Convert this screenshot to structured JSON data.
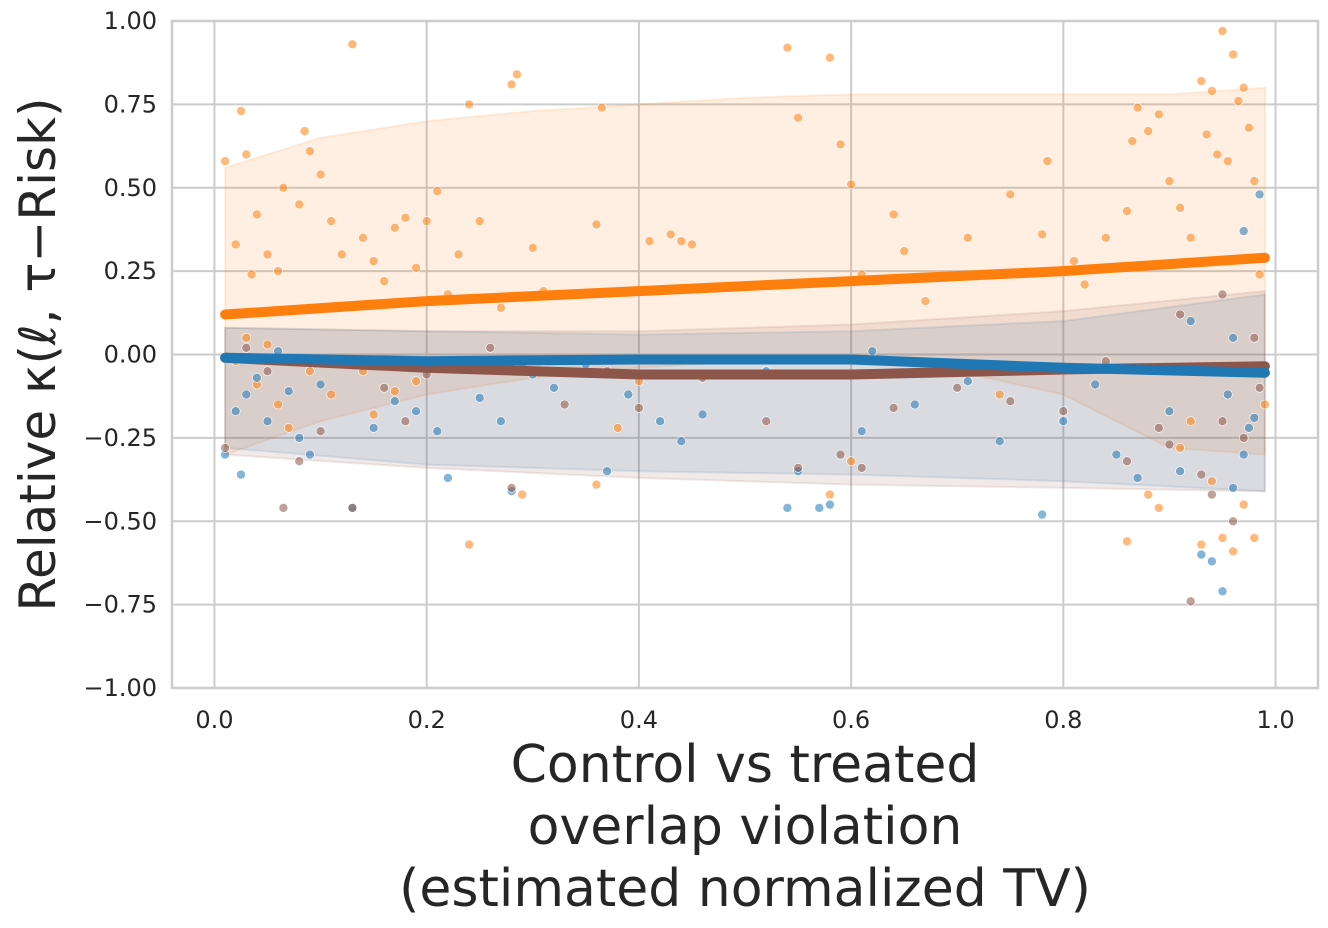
{
  "chart_data": {
    "type": "scatter",
    "xlabel_lines": [
      "Control vs treated",
      "overlap violation",
      "(estimated normalized TV)"
    ],
    "ylabel": "Relative κ(ℓ, τ−Risk)",
    "xlim": [
      -0.04,
      1.04
    ],
    "ylim": [
      -1.0,
      1.0
    ],
    "xticks": [
      0.0,
      0.2,
      0.4,
      0.6,
      0.8,
      1.0
    ],
    "xtick_labels": [
      "0.0",
      "0.2",
      "0.4",
      "0.6",
      "0.8",
      "1.0"
    ],
    "yticks": [
      -1.0,
      -0.75,
      -0.5,
      -0.25,
      0.0,
      0.25,
      0.5,
      0.75,
      1.0
    ],
    "ytick_labels": [
      "−1.00",
      "−0.75",
      "−0.50",
      "−0.25",
      "0.00",
      "0.25",
      "0.50",
      "0.75",
      "1.00"
    ],
    "grid": true,
    "legend": "none",
    "series": [
      {
        "color": "#ff7f0e",
        "trend": {
          "x": [
            0.01,
            0.2,
            0.4,
            0.6,
            0.8,
            0.99
          ],
          "y": [
            0.12,
            0.16,
            0.19,
            0.22,
            0.25,
            0.29
          ]
        },
        "band_upper": {
          "x": [
            0.01,
            0.1,
            0.2,
            0.3,
            0.4,
            0.5,
            0.6,
            0.7,
            0.8,
            0.9,
            0.99
          ],
          "y": [
            0.56,
            0.65,
            0.7,
            0.73,
            0.75,
            0.77,
            0.78,
            0.78,
            0.78,
            0.78,
            0.8
          ]
        },
        "band_lower": {
          "x": [
            0.01,
            0.1,
            0.2,
            0.3,
            0.4,
            0.5,
            0.6,
            0.7,
            0.8,
            0.9,
            0.99
          ],
          "y": [
            -0.3,
            -0.2,
            -0.12,
            -0.07,
            -0.04,
            -0.02,
            -0.02,
            -0.05,
            -0.12,
            -0.28,
            -0.3
          ]
        },
        "points": [
          [
            0.01,
            0.58
          ],
          [
            0.02,
            0.33
          ],
          [
            0.025,
            0.73
          ],
          [
            0.03,
            0.6
          ],
          [
            0.035,
            0.24
          ],
          [
            0.04,
            0.42
          ],
          [
            0.05,
            0.3
          ],
          [
            0.06,
            0.25
          ],
          [
            0.065,
            0.5
          ],
          [
            0.08,
            0.45
          ],
          [
            0.085,
            0.67
          ],
          [
            0.09,
            0.61
          ],
          [
            0.1,
            0.54
          ],
          [
            0.11,
            0.4
          ],
          [
            0.12,
            0.3
          ],
          [
            0.13,
            0.93
          ],
          [
            0.14,
            0.35
          ],
          [
            0.15,
            0.28
          ],
          [
            0.16,
            0.22
          ],
          [
            0.17,
            0.38
          ],
          [
            0.18,
            0.41
          ],
          [
            0.19,
            0.26
          ],
          [
            0.2,
            0.4
          ],
          [
            0.21,
            0.49
          ],
          [
            0.22,
            0.18
          ],
          [
            0.23,
            0.3
          ],
          [
            0.24,
            0.75
          ],
          [
            0.25,
            0.4
          ],
          [
            0.27,
            0.14
          ],
          [
            0.28,
            0.81
          ],
          [
            0.285,
            0.84
          ],
          [
            0.3,
            0.32
          ],
          [
            0.31,
            0.19
          ],
          [
            0.36,
            0.39
          ],
          [
            0.365,
            0.74
          ],
          [
            0.41,
            0.34
          ],
          [
            0.43,
            0.36
          ],
          [
            0.44,
            0.34
          ],
          [
            0.45,
            0.33
          ],
          [
            0.54,
            0.92
          ],
          [
            0.55,
            0.71
          ],
          [
            0.58,
            0.89
          ],
          [
            0.59,
            0.63
          ],
          [
            0.6,
            0.51
          ],
          [
            0.61,
            0.24
          ],
          [
            0.64,
            0.42
          ],
          [
            0.65,
            0.31
          ],
          [
            0.67,
            0.16
          ],
          [
            0.71,
            0.35
          ],
          [
            0.75,
            0.48
          ],
          [
            0.78,
            0.36
          ],
          [
            0.785,
            0.58
          ],
          [
            0.81,
            0.28
          ],
          [
            0.82,
            0.21
          ],
          [
            0.84,
            0.35
          ],
          [
            0.86,
            0.43
          ],
          [
            0.865,
            0.64
          ],
          [
            0.87,
            0.74
          ],
          [
            0.88,
            0.67
          ],
          [
            0.89,
            0.72
          ],
          [
            0.9,
            0.52
          ],
          [
            0.91,
            0.44
          ],
          [
            0.92,
            0.35
          ],
          [
            0.93,
            0.82
          ],
          [
            0.935,
            0.66
          ],
          [
            0.94,
            0.79
          ],
          [
            0.945,
            0.6
          ],
          [
            0.95,
            0.97
          ],
          [
            0.955,
            0.58
          ],
          [
            0.96,
            0.9
          ],
          [
            0.965,
            0.76
          ],
          [
            0.97,
            0.8
          ],
          [
            0.975,
            0.68
          ],
          [
            0.98,
            0.52
          ],
          [
            0.985,
            0.24
          ],
          [
            0.02,
            -0.02
          ],
          [
            0.03,
            0.05
          ],
          [
            0.04,
            -0.09
          ],
          [
            0.05,
            0.03
          ],
          [
            0.06,
            -0.15
          ],
          [
            0.07,
            -0.22
          ],
          [
            0.09,
            -0.05
          ],
          [
            0.11,
            -0.12
          ],
          [
            0.14,
            -0.05
          ],
          [
            0.15,
            -0.18
          ],
          [
            0.17,
            -0.11
          ],
          [
            0.19,
            -0.08
          ],
          [
            0.24,
            -0.57
          ],
          [
            0.29,
            -0.42
          ],
          [
            0.31,
            -0.02
          ],
          [
            0.36,
            -0.39
          ],
          [
            0.38,
            -0.22
          ],
          [
            0.4,
            -0.08
          ],
          [
            0.58,
            -0.42
          ],
          [
            0.6,
            -0.32
          ],
          [
            0.74,
            -0.12
          ],
          [
            0.86,
            -0.56
          ],
          [
            0.88,
            -0.42
          ],
          [
            0.89,
            -0.46
          ],
          [
            0.91,
            -0.28
          ],
          [
            0.93,
            -0.57
          ],
          [
            0.95,
            -0.55
          ],
          [
            0.96,
            -0.59
          ],
          [
            0.97,
            -0.45
          ],
          [
            0.98,
            -0.55
          ],
          [
            0.99,
            -0.15
          ],
          [
            0.92,
            -0.2
          ],
          [
            0.94,
            -0.38
          ]
        ]
      },
      {
        "color": "#1f77b4",
        "trend": {
          "x": [
            0.01,
            0.2,
            0.4,
            0.6,
            0.8,
            0.99
          ],
          "y": [
            -0.01,
            -0.02,
            -0.015,
            -0.015,
            -0.04,
            -0.055
          ]
        },
        "band_upper": {
          "x": [
            0.01,
            0.2,
            0.4,
            0.6,
            0.8,
            0.99
          ],
          "y": [
            0.08,
            0.07,
            0.06,
            0.07,
            0.1,
            0.18
          ]
        },
        "band_lower": {
          "x": [
            0.01,
            0.2,
            0.4,
            0.6,
            0.8,
            0.99
          ],
          "y": [
            -0.28,
            -0.33,
            -0.35,
            -0.36,
            -0.38,
            -0.41
          ]
        },
        "points": [
          [
            0.01,
            -0.3
          ],
          [
            0.02,
            -0.17
          ],
          [
            0.025,
            -0.36
          ],
          [
            0.03,
            -0.12
          ],
          [
            0.04,
            -0.07
          ],
          [
            0.05,
            -0.2
          ],
          [
            0.06,
            0.01
          ],
          [
            0.07,
            -0.11
          ],
          [
            0.08,
            -0.25
          ],
          [
            0.09,
            -0.3
          ],
          [
            0.1,
            -0.09
          ],
          [
            0.12,
            -0.02
          ],
          [
            0.13,
            -0.46
          ],
          [
            0.15,
            -0.22
          ],
          [
            0.17,
            -0.14
          ],
          [
            0.19,
            -0.17
          ],
          [
            0.21,
            -0.23
          ],
          [
            0.22,
            -0.37
          ],
          [
            0.25,
            -0.13
          ],
          [
            0.27,
            -0.2
          ],
          [
            0.28,
            -0.41
          ],
          [
            0.29,
            -0.03
          ],
          [
            0.3,
            -0.06
          ],
          [
            0.32,
            -0.1
          ],
          [
            0.35,
            -0.03
          ],
          [
            0.37,
            -0.35
          ],
          [
            0.39,
            -0.12
          ],
          [
            0.42,
            -0.2
          ],
          [
            0.44,
            -0.26
          ],
          [
            0.46,
            -0.18
          ],
          [
            0.52,
            -0.05
          ],
          [
            0.54,
            -0.46
          ],
          [
            0.55,
            -0.35
          ],
          [
            0.57,
            -0.46
          ],
          [
            0.58,
            -0.45
          ],
          [
            0.61,
            -0.23
          ],
          [
            0.62,
            0.01
          ],
          [
            0.66,
            -0.15
          ],
          [
            0.71,
            -0.08
          ],
          [
            0.74,
            -0.26
          ],
          [
            0.78,
            -0.48
          ],
          [
            0.8,
            -0.2
          ],
          [
            0.83,
            -0.09
          ],
          [
            0.85,
            -0.3
          ],
          [
            0.87,
            -0.37
          ],
          [
            0.9,
            -0.17
          ],
          [
            0.91,
            -0.35
          ],
          [
            0.93,
            -0.6
          ],
          [
            0.94,
            -0.62
          ],
          [
            0.95,
            -0.71
          ],
          [
            0.96,
            -0.4
          ],
          [
            0.97,
            -0.3
          ],
          [
            0.98,
            -0.19
          ],
          [
            0.985,
            0.48
          ],
          [
            0.92,
            0.1
          ],
          [
            0.94,
            -0.05
          ],
          [
            0.96,
            0.05
          ],
          [
            0.97,
            0.37
          ],
          [
            0.955,
            -0.12
          ],
          [
            0.975,
            -0.22
          ]
        ]
      },
      {
        "color": "#8c564b",
        "trend": {
          "x": [
            0.01,
            0.2,
            0.4,
            0.6,
            0.8,
            0.99
          ],
          "y": [
            -0.01,
            -0.04,
            -0.06,
            -0.06,
            -0.045,
            -0.035
          ]
        },
        "band_upper": {
          "x": [
            0.01,
            0.2,
            0.4,
            0.6,
            0.8,
            0.99
          ],
          "y": [
            0.08,
            0.07,
            0.07,
            0.09,
            0.13,
            0.19
          ]
        },
        "band_lower": {
          "x": [
            0.01,
            0.2,
            0.4,
            0.6,
            0.8,
            0.99
          ],
          "y": [
            -0.3,
            -0.34,
            -0.37,
            -0.39,
            -0.4,
            -0.41
          ]
        },
        "points": [
          [
            0.01,
            -0.28
          ],
          [
            0.03,
            0.02
          ],
          [
            0.05,
            -0.05
          ],
          [
            0.065,
            -0.46
          ],
          [
            0.08,
            -0.32
          ],
          [
            0.1,
            -0.23
          ],
          [
            0.13,
            -0.46
          ],
          [
            0.16,
            -0.1
          ],
          [
            0.18,
            -0.2
          ],
          [
            0.2,
            -0.06
          ],
          [
            0.26,
            0.02
          ],
          [
            0.28,
            -0.4
          ],
          [
            0.33,
            -0.15
          ],
          [
            0.37,
            -0.05
          ],
          [
            0.4,
            -0.16
          ],
          [
            0.46,
            -0.07
          ],
          [
            0.52,
            -0.2
          ],
          [
            0.55,
            -0.34
          ],
          [
            0.59,
            -0.3
          ],
          [
            0.61,
            -0.34
          ],
          [
            0.64,
            -0.16
          ],
          [
            0.7,
            -0.1
          ],
          [
            0.75,
            -0.14
          ],
          [
            0.8,
            -0.17
          ],
          [
            0.84,
            -0.02
          ],
          [
            0.86,
            -0.32
          ],
          [
            0.89,
            -0.22
          ],
          [
            0.9,
            -0.27
          ],
          [
            0.92,
            -0.74
          ],
          [
            0.93,
            -0.36
          ],
          [
            0.94,
            -0.42
          ],
          [
            0.95,
            -0.2
          ],
          [
            0.96,
            -0.5
          ],
          [
            0.97,
            -0.25
          ],
          [
            0.98,
            0.05
          ],
          [
            0.985,
            -0.1
          ],
          [
            0.91,
            0.12
          ],
          [
            0.95,
            0.18
          ]
        ]
      }
    ]
  }
}
